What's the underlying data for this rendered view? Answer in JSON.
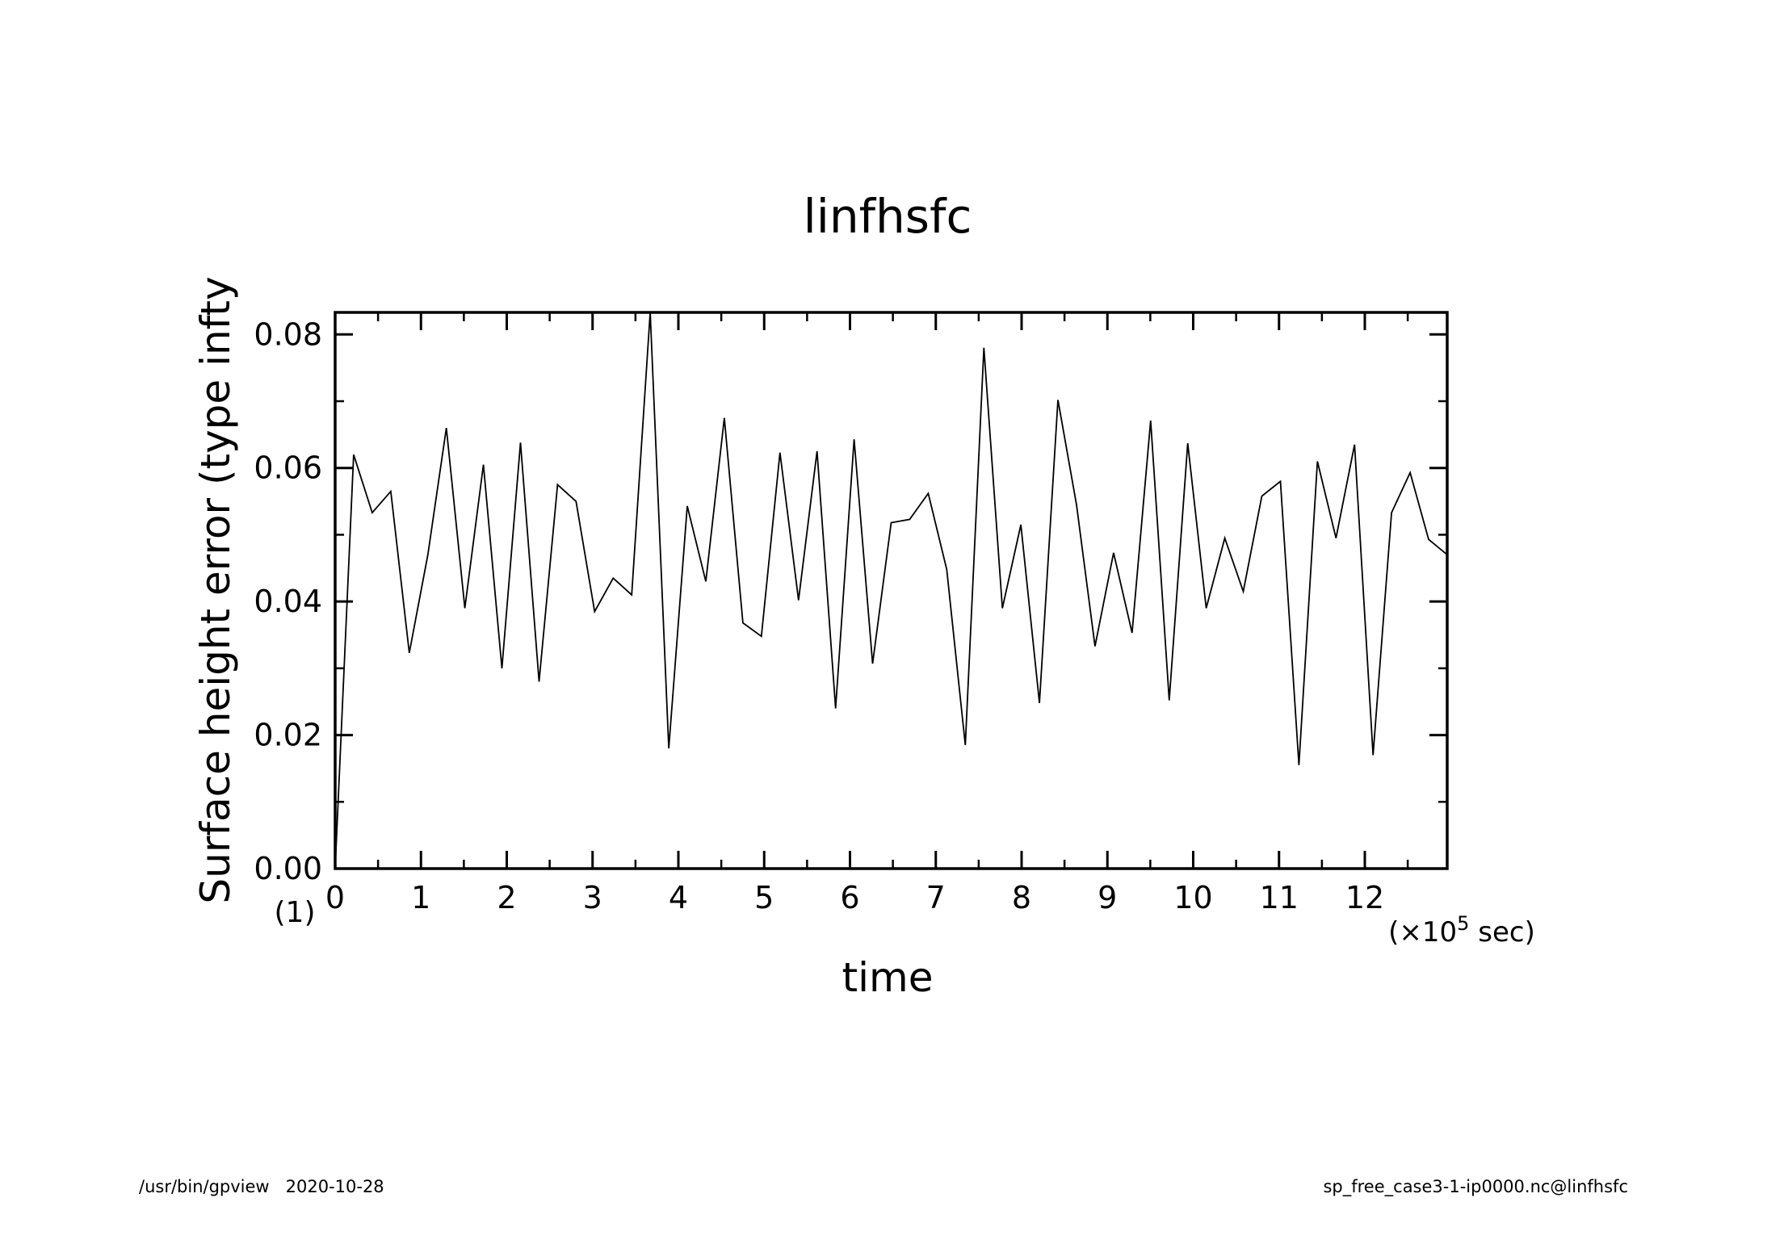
{
  "chart_data": {
    "type": "line",
    "title": "linfhsfc",
    "xlabel": "time",
    "ylabel": "Surface height error (type infty",
    "y_unit_label": "(1)",
    "x_unit_label": "(×10",
    "x_unit_exponent": "5",
    "x_unit_suffix": " sec)",
    "xlim": [
      0,
      12.96
    ],
    "ylim": [
      0,
      0.0833
    ],
    "x_ticks": [
      0,
      1,
      2,
      3,
      4,
      5,
      6,
      7,
      8,
      9,
      10,
      11,
      12
    ],
    "y_ticks": [
      0.0,
      0.02,
      0.04,
      0.06,
      0.08
    ],
    "x_tick_labels": [
      "0",
      "1",
      "2",
      "3",
      "4",
      "5",
      "6",
      "7",
      "8",
      "9",
      "10",
      "11",
      "12"
    ],
    "y_tick_labels": [
      "0.00",
      "0.02",
      "0.04",
      "0.06",
      "0.08"
    ],
    "grid": false,
    "series": [
      {
        "x": [
          0,
          0.216,
          0.432,
          0.648,
          0.864,
          1.08,
          1.296,
          1.512,
          1.728,
          1.944,
          2.16,
          2.376,
          2.592,
          2.808,
          3.024,
          3.24,
          3.456,
          3.672,
          3.888,
          4.104,
          4.32,
          4.536,
          4.752,
          4.968,
          5.184,
          5.4,
          5.616,
          5.832,
          6.048,
          6.264,
          6.48,
          6.696,
          6.912,
          7.128,
          7.344,
          7.56,
          7.776,
          7.992,
          8.208,
          8.424,
          8.64,
          8.856,
          9.072,
          9.288,
          9.504,
          9.72,
          9.936,
          10.152,
          10.368,
          10.584,
          10.8,
          11.016,
          11.232,
          11.448,
          11.664,
          11.88,
          12.096,
          12.312,
          12.528,
          12.744,
          12.96
        ],
        "y": [
          0.0,
          0.062,
          0.0533,
          0.0565,
          0.0323,
          0.047,
          0.066,
          0.039,
          0.0605,
          0.03,
          0.0638,
          0.028,
          0.0575,
          0.055,
          0.0385,
          0.0435,
          0.041,
          0.0833,
          0.018,
          0.0543,
          0.043,
          0.0675,
          0.0368,
          0.0348,
          0.0623,
          0.0402,
          0.0625,
          0.024,
          0.0643,
          0.0307,
          0.0518,
          0.0523,
          0.0562,
          0.0448,
          0.0185,
          0.078,
          0.039,
          0.0515,
          0.0248,
          0.0702,
          0.0545,
          0.0333,
          0.0473,
          0.0353,
          0.0671,
          0.0252,
          0.0637,
          0.039,
          0.0495,
          0.0415,
          0.0558,
          0.058,
          0.0155,
          0.061,
          0.0495,
          0.0635,
          0.017,
          0.0533,
          0.0593,
          0.0493,
          0.047
        ]
      }
    ]
  },
  "footer": {
    "left": "/usr/bin/gpview   2020-10-28",
    "right": "sp_free_case3-1-ip0000.nc@linfhsfc"
  }
}
